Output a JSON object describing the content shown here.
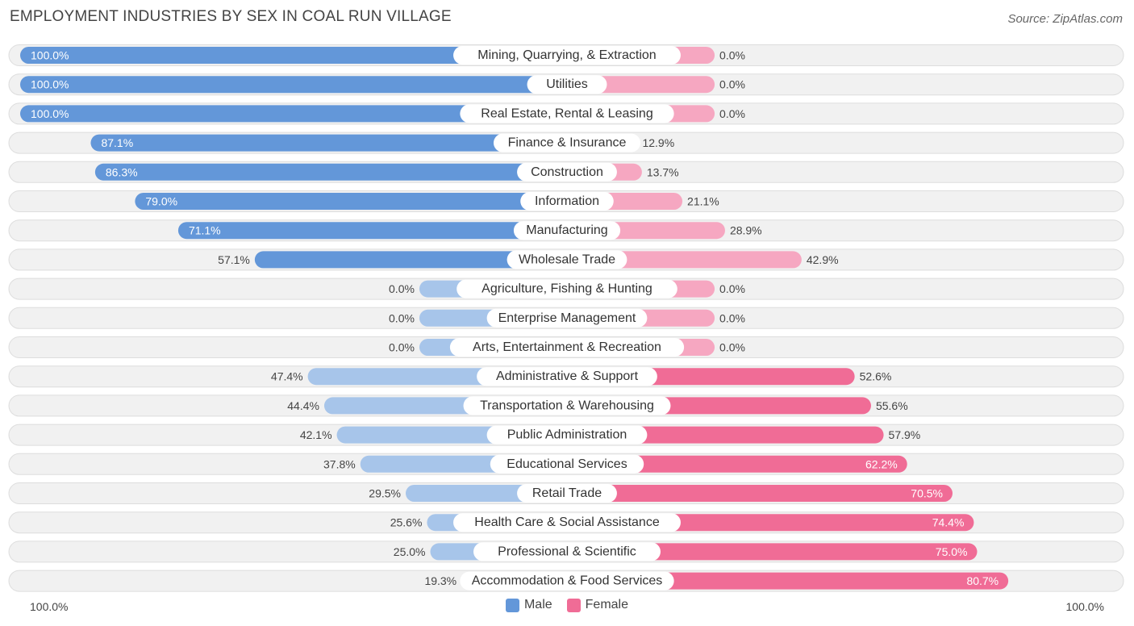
{
  "title": "EMPLOYMENT INDUSTRIES BY SEX IN COAL RUN VILLAGE",
  "source": "Source: ZipAtlas.com",
  "colors": {
    "male_strong": "#6397d9",
    "male_light": "#a7c5ea",
    "female_strong": "#f06c96",
    "female_light": "#f6a7c1",
    "row_bg": "#f1f1f1",
    "row_border": "#dddddd"
  },
  "legend": {
    "male": "Male",
    "female": "Female"
  },
  "axis": {
    "left": "100.0%",
    "right": "100.0%"
  },
  "chart_data": {
    "type": "bar",
    "orientation": "horizontal-diverging",
    "title": "EMPLOYMENT INDUSTRIES BY SEX IN COAL RUN VILLAGE",
    "xlim": [
      -100,
      100
    ],
    "categories": [
      "Mining, Quarrying, & Extraction",
      "Utilities",
      "Real Estate, Rental & Leasing",
      "Finance & Insurance",
      "Construction",
      "Information",
      "Manufacturing",
      "Wholesale Trade",
      "Agriculture, Fishing & Hunting",
      "Enterprise Management",
      "Arts, Entertainment & Recreation",
      "Administrative & Support",
      "Transportation & Warehousing",
      "Public Administration",
      "Educational Services",
      "Retail Trade",
      "Health Care & Social Assistance",
      "Professional & Scientific",
      "Accommodation & Food Services"
    ],
    "series": [
      {
        "name": "Male",
        "values": [
          100.0,
          100.0,
          100.0,
          87.1,
          86.3,
          79.0,
          71.1,
          57.1,
          0.0,
          0.0,
          0.0,
          47.4,
          44.4,
          42.1,
          37.8,
          29.5,
          25.6,
          25.0,
          19.3
        ],
        "labels": [
          "100.0%",
          "100.0%",
          "100.0%",
          "87.1%",
          "86.3%",
          "79.0%",
          "71.1%",
          "57.1%",
          "0.0%",
          "0.0%",
          "0.0%",
          "47.4%",
          "44.4%",
          "42.1%",
          "37.8%",
          "29.5%",
          "25.6%",
          "25.0%",
          "19.3%"
        ]
      },
      {
        "name": "Female",
        "values": [
          0.0,
          0.0,
          0.0,
          12.9,
          13.7,
          21.1,
          28.9,
          42.9,
          0.0,
          0.0,
          0.0,
          52.6,
          55.6,
          57.9,
          62.2,
          70.5,
          74.4,
          75.0,
          80.7
        ],
        "labels": [
          "0.0%",
          "0.0%",
          "0.0%",
          "12.9%",
          "13.7%",
          "21.1%",
          "28.9%",
          "42.9%",
          "0.0%",
          "0.0%",
          "0.0%",
          "52.6%",
          "55.6%",
          "57.9%",
          "62.2%",
          "70.5%",
          "74.4%",
          "75.0%",
          "80.7%"
        ]
      }
    ]
  }
}
